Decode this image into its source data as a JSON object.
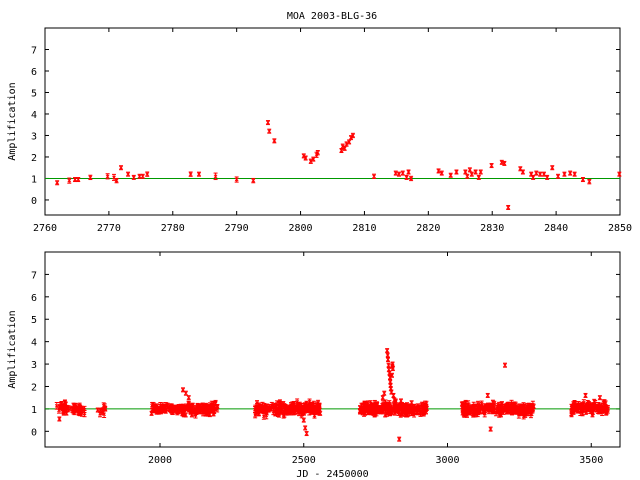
{
  "title": "MOA 2003-BLG-36",
  "colors": {
    "data": "#ff0000",
    "baseline": "#009900",
    "axes": "#000000"
  },
  "chart_data": [
    {
      "type": "scatter",
      "ylabel": "Amplification",
      "xlabel": "",
      "xlim": [
        2760,
        2850
      ],
      "ylim": [
        -0.7,
        8
      ],
      "xticks": [
        2760,
        2770,
        2780,
        2790,
        2800,
        2810,
        2820,
        2830,
        2840,
        2850
      ],
      "yticks": [
        0,
        1,
        2,
        3,
        4,
        5,
        6,
        7
      ],
      "xtick_labels": [
        "2760",
        "2770",
        "2780",
        "2790",
        "2800",
        "2810",
        "2820",
        "2830",
        "2840",
        "2850"
      ],
      "ytick_labels": [
        "0",
        "1",
        "2",
        "3",
        "4",
        "5",
        "6",
        "7"
      ],
      "baseline": 1,
      "grid": false,
      "legend": "none",
      "points": [
        [
          2761.9,
          0.8,
          0.07
        ],
        [
          2763.8,
          0.9,
          0.12
        ],
        [
          2764.7,
          0.95,
          0.07
        ],
        [
          2765.2,
          0.95,
          0.08
        ],
        [
          2767.1,
          1.05,
          0.1
        ],
        [
          2769.8,
          1.1,
          0.12
        ],
        [
          2770.8,
          1.05,
          0.14
        ],
        [
          2771.2,
          0.9,
          0.1
        ],
        [
          2771.9,
          1.5,
          0.08
        ],
        [
          2773.0,
          1.2,
          0.06
        ],
        [
          2773.9,
          1.05,
          0.05
        ],
        [
          2774.8,
          1.1,
          0.05
        ],
        [
          2775.3,
          1.1,
          0.05
        ],
        [
          2776.0,
          1.2,
          0.1
        ],
        [
          2782.8,
          1.2,
          0.1
        ],
        [
          2784.1,
          1.2,
          0.08
        ],
        [
          2786.7,
          1.1,
          0.15
        ],
        [
          2790.0,
          0.95,
          0.12
        ],
        [
          2792.6,
          0.9,
          0.1
        ],
        [
          2794.9,
          3.6,
          0.08
        ],
        [
          2795.1,
          3.2,
          0.07
        ],
        [
          2795.9,
          2.75,
          0.08
        ],
        [
          2800.5,
          2.05,
          0.06
        ],
        [
          2800.8,
          1.95,
          0.06
        ],
        [
          2801.6,
          1.8,
          0.1
        ],
        [
          2802.0,
          1.9,
          0.08
        ],
        [
          2802.5,
          2.1,
          0.12
        ],
        [
          2802.7,
          2.2,
          0.1
        ],
        [
          2806.4,
          2.3,
          0.08
        ],
        [
          2806.6,
          2.5,
          0.1
        ],
        [
          2806.9,
          2.4,
          0.08
        ],
        [
          2807.2,
          2.6,
          0.1
        ],
        [
          2807.6,
          2.7,
          0.09
        ],
        [
          2807.9,
          2.9,
          0.08
        ],
        [
          2808.2,
          3.0,
          0.1
        ],
        [
          2811.5,
          1.1,
          0.1
        ],
        [
          2814.9,
          1.25,
          0.06
        ],
        [
          2815.4,
          1.2,
          0.05
        ],
        [
          2816.0,
          1.25,
          0.06
        ],
        [
          2816.6,
          1.05,
          0.08
        ],
        [
          2816.9,
          1.3,
          0.08
        ],
        [
          2817.3,
          1.0,
          0.1
        ],
        [
          2821.6,
          1.35,
          0.08
        ],
        [
          2822.1,
          1.25,
          0.06
        ],
        [
          2823.5,
          1.15,
          0.05
        ],
        [
          2824.4,
          1.3,
          0.05
        ],
        [
          2825.8,
          1.3,
          0.06
        ],
        [
          2826.1,
          1.1,
          0.08
        ],
        [
          2826.5,
          1.4,
          0.07
        ],
        [
          2826.8,
          1.2,
          0.06
        ],
        [
          2827.4,
          1.3,
          0.05
        ],
        [
          2827.9,
          1.05,
          0.08
        ],
        [
          2828.2,
          1.3,
          0.06
        ],
        [
          2829.9,
          1.6,
          0.08
        ],
        [
          2831.5,
          1.75,
          0.07
        ],
        [
          2831.9,
          1.7,
          0.06
        ],
        [
          2832.5,
          -0.35,
          0.06
        ],
        [
          2834.4,
          1.45,
          0.07
        ],
        [
          2834.8,
          1.3,
          0.08
        ],
        [
          2836.1,
          1.2,
          0.06
        ],
        [
          2836.4,
          1.05,
          0.07
        ],
        [
          2836.9,
          1.25,
          0.06
        ],
        [
          2837.5,
          1.2,
          0.05
        ],
        [
          2838.1,
          1.2,
          0.05
        ],
        [
          2838.6,
          1.05,
          0.06
        ],
        [
          2839.4,
          1.5,
          0.06
        ],
        [
          2840.3,
          1.1,
          0.06
        ],
        [
          2841.3,
          1.2,
          0.06
        ],
        [
          2842.2,
          1.25,
          0.05
        ],
        [
          2842.9,
          1.2,
          0.05
        ],
        [
          2844.2,
          0.95,
          0.08
        ],
        [
          2845.2,
          0.85,
          0.1
        ],
        [
          2849.9,
          1.2,
          0.06
        ]
      ]
    },
    {
      "type": "scatter",
      "ylabel": "Amplification",
      "xlabel": "JD - 2450000",
      "xlim": [
        1600,
        3600
      ],
      "ylim": [
        -0.7,
        8
      ],
      "xticks": [
        2000,
        2500,
        3000,
        3500
      ],
      "yticks": [
        0,
        1,
        2,
        3,
        4,
        5,
        6,
        7
      ],
      "xtick_labels": [
        "2000",
        "2500",
        "3000",
        "3500"
      ],
      "ytick_labels": [
        "0",
        "1",
        "2",
        "3",
        "4",
        "5",
        "6",
        "7"
      ],
      "baseline": 1,
      "grid": false,
      "legend": "none",
      "clusters": [
        {
          "from": 1640,
          "to": 1740,
          "n": 50,
          "center": 1.0,
          "spread": 0.12
        },
        {
          "from": 1780,
          "to": 1810,
          "n": 10,
          "center": 0.95,
          "spread": 0.1
        },
        {
          "from": 1970,
          "to": 2200,
          "n": 180,
          "center": 1.0,
          "spread": 0.12
        },
        {
          "from": 2330,
          "to": 2560,
          "n": 210,
          "center": 1.0,
          "spread": 0.13
        },
        {
          "from": 2695,
          "to": 2930,
          "n": 230,
          "center": 1.0,
          "spread": 0.12
        },
        {
          "from": 3050,
          "to": 3300,
          "n": 230,
          "center": 1.0,
          "spread": 0.13
        },
        {
          "from": 3430,
          "to": 3560,
          "n": 110,
          "center": 1.05,
          "spread": 0.13
        }
      ],
      "outliers": [
        [
          1650,
          0.55
        ],
        [
          2080,
          1.85
        ],
        [
          2090,
          1.7
        ],
        [
          2100,
          1.5
        ],
        [
          2500,
          0.5
        ],
        [
          2505,
          0.15
        ],
        [
          2510,
          -0.1
        ],
        [
          2790,
          3.6
        ],
        [
          2792,
          3.4
        ],
        [
          2793,
          3.2
        ],
        [
          2795,
          2.95
        ],
        [
          2796,
          2.75
        ],
        [
          2798,
          2.6
        ],
        [
          2800,
          2.4
        ],
        [
          2801,
          2.2
        ],
        [
          2802,
          2.05
        ],
        [
          2803,
          1.9
        ],
        [
          2805,
          1.75
        ],
        [
          2807,
          2.5
        ],
        [
          2808,
          2.9
        ],
        [
          2809,
          3.0
        ],
        [
          2810,
          2.8
        ],
        [
          2812,
          1.6
        ],
        [
          2815,
          1.4
        ],
        [
          2820,
          1.35
        ],
        [
          2780,
          1.7
        ],
        [
          2775,
          1.5
        ],
        [
          2832,
          -0.35
        ],
        [
          3150,
          0.1
        ],
        [
          3200,
          2.95
        ],
        [
          3140,
          1.6
        ],
        [
          3480,
          1.6
        ],
        [
          3530,
          1.5
        ]
      ]
    }
  ]
}
